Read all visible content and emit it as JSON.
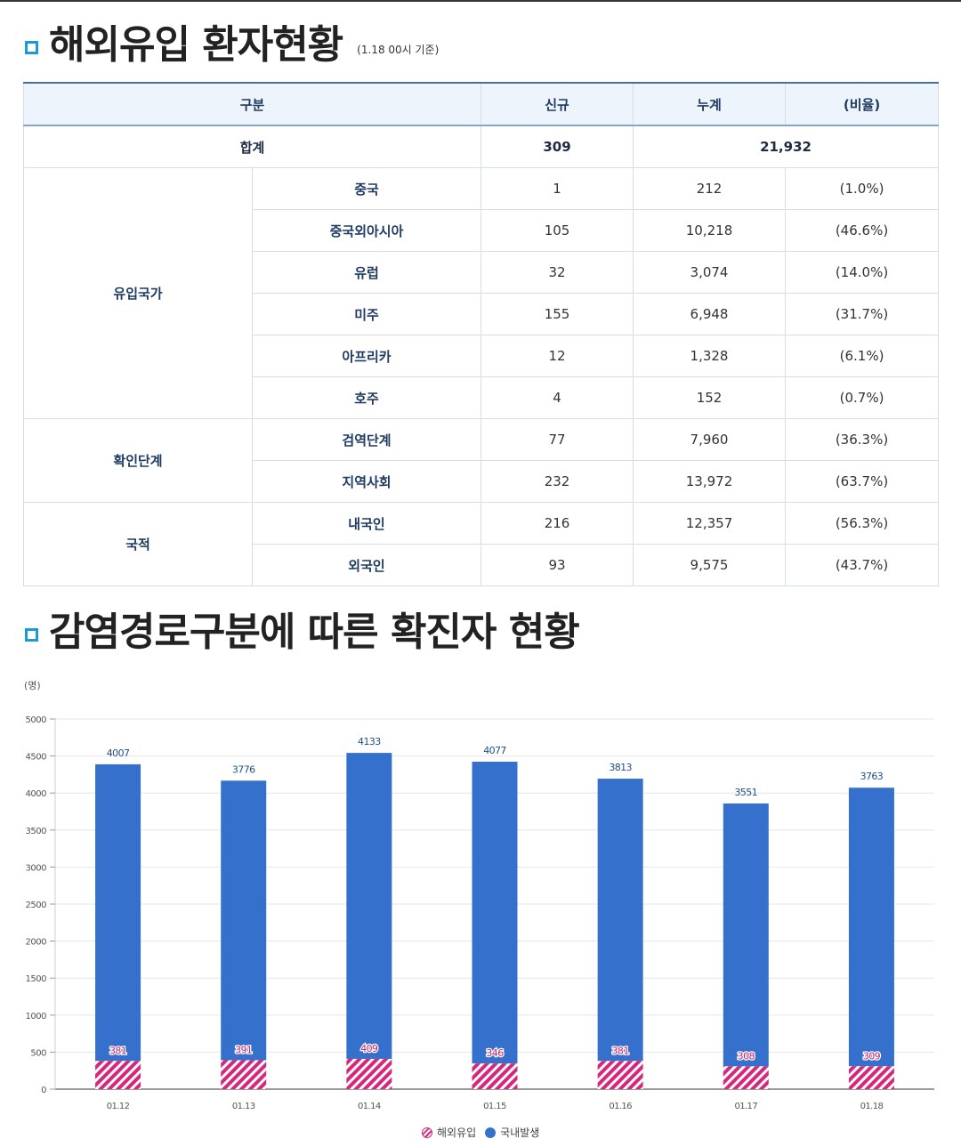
{
  "section1": {
    "title": "해외유입 환자현황",
    "subtitle": "(1.18 00시 기준)"
  },
  "table": {
    "headers": [
      "구분",
      "신규",
      "누계",
      "(비율)"
    ],
    "total": {
      "label": "합계",
      "new": "309",
      "cumulative": "21,932"
    },
    "groups": [
      {
        "name": "유입국가",
        "rows": [
          {
            "label": "중국",
            "new": "1",
            "cumulative": "212",
            "ratio": "(1.0%)"
          },
          {
            "label": "중국외아시아",
            "new": "105",
            "cumulative": "10,218",
            "ratio": "(46.6%)"
          },
          {
            "label": "유럽",
            "new": "32",
            "cumulative": "3,074",
            "ratio": "(14.0%)"
          },
          {
            "label": "미주",
            "new": "155",
            "cumulative": "6,948",
            "ratio": "(31.7%)"
          },
          {
            "label": "아프리카",
            "new": "12",
            "cumulative": "1,328",
            "ratio": "(6.1%)"
          },
          {
            "label": "호주",
            "new": "4",
            "cumulative": "152",
            "ratio": "(0.7%)"
          }
        ]
      },
      {
        "name": "확인단계",
        "rows": [
          {
            "label": "검역단계",
            "new": "77",
            "cumulative": "7,960",
            "ratio": "(36.3%)"
          },
          {
            "label": "지역사회",
            "new": "232",
            "cumulative": "13,972",
            "ratio": "(63.7%)"
          }
        ]
      },
      {
        "name": "국적",
        "rows": [
          {
            "label": "내국인",
            "new": "216",
            "cumulative": "12,357",
            "ratio": "(56.3%)"
          },
          {
            "label": "외국인",
            "new": "93",
            "cumulative": "9,575",
            "ratio": "(43.7%)"
          }
        ]
      }
    ]
  },
  "section2": {
    "title": "감염경로구분에 따른 확진자 현황"
  },
  "colors": {
    "imported": "#d6287b",
    "domestic": "#3571cc",
    "accent": "#1a9bd7"
  },
  "chart_data": {
    "type": "bar",
    "stacked": true,
    "ylabel": "(명)",
    "ylim": [
      0,
      5000
    ],
    "yticks": [
      0,
      500,
      1000,
      1500,
      2000,
      2500,
      3000,
      3500,
      4000,
      4500,
      5000
    ],
    "categories": [
      "01.12",
      "01.13",
      "01.14",
      "01.15",
      "01.16",
      "01.17",
      "01.18"
    ],
    "series": [
      {
        "name": "해외유입",
        "values": [
          381,
          391,
          409,
          346,
          381,
          308,
          309
        ]
      },
      {
        "name": "국내발생",
        "values": [
          4007,
          3776,
          4133,
          4077,
          3813,
          3551,
          3763
        ]
      }
    ],
    "grid": true,
    "legend": "bottom"
  }
}
